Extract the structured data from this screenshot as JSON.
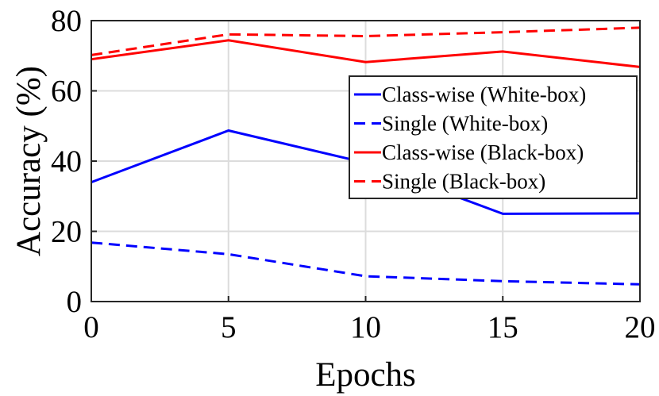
{
  "chart_data": {
    "type": "line",
    "xlabel": "Epochs",
    "ylabel": "Accuracy (%)",
    "x": [
      0,
      5,
      10,
      15,
      20
    ],
    "xlim": [
      0,
      20
    ],
    "ylim": [
      0,
      80
    ],
    "xticks": [
      "0",
      "5",
      "10",
      "15",
      "20"
    ],
    "yticks": [
      "0",
      "20",
      "40",
      "60",
      "80"
    ],
    "grid": true,
    "legend_position": "top-right",
    "series": [
      {
        "name": "Class-wise (White-box)",
        "color": "#0000ff",
        "style": "solid",
        "values": [
          34,
          48.7,
          39.5,
          25,
          25.1
        ]
      },
      {
        "name": "Single (White-box)",
        "color": "#0000ff",
        "style": "dashed",
        "values": [
          16.8,
          13.5,
          7.2,
          5.8,
          4.9
        ]
      },
      {
        "name": "Class-wise (Black-box)",
        "color": "#ff0000",
        "style": "solid",
        "values": [
          69,
          74.4,
          68.2,
          71.2,
          66.8
        ]
      },
      {
        "name": "Single (Black-box)",
        "color": "#ff0000",
        "style": "dashed",
        "values": [
          70.2,
          76.1,
          75.6,
          76.7,
          78
        ]
      }
    ]
  }
}
